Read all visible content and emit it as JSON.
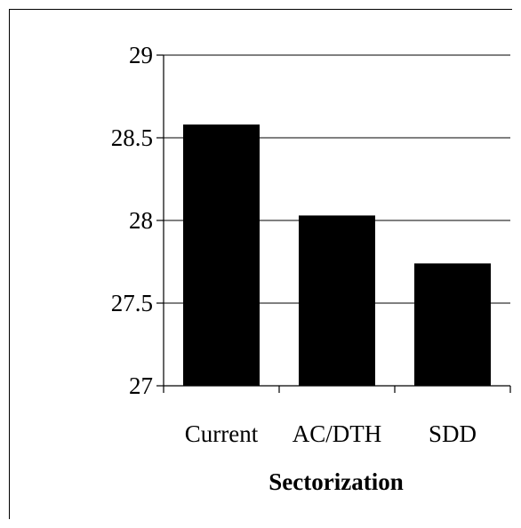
{
  "chart_data": {
    "type": "bar",
    "categories": [
      "Current",
      "AC/DTH",
      "SDD"
    ],
    "values": [
      28.58,
      28.03,
      27.74
    ],
    "title": "",
    "xlabel": "Sectorization",
    "ylabel": "",
    "ylim": [
      27,
      29
    ],
    "yticks": [
      27,
      27.5,
      28,
      28.5,
      29
    ],
    "ytick_labels": [
      "27",
      "27.5",
      "28",
      "28.5",
      "29"
    ],
    "grid": true,
    "legend": "none",
    "bar_color": "#000000",
    "grid_color": "#000000"
  }
}
